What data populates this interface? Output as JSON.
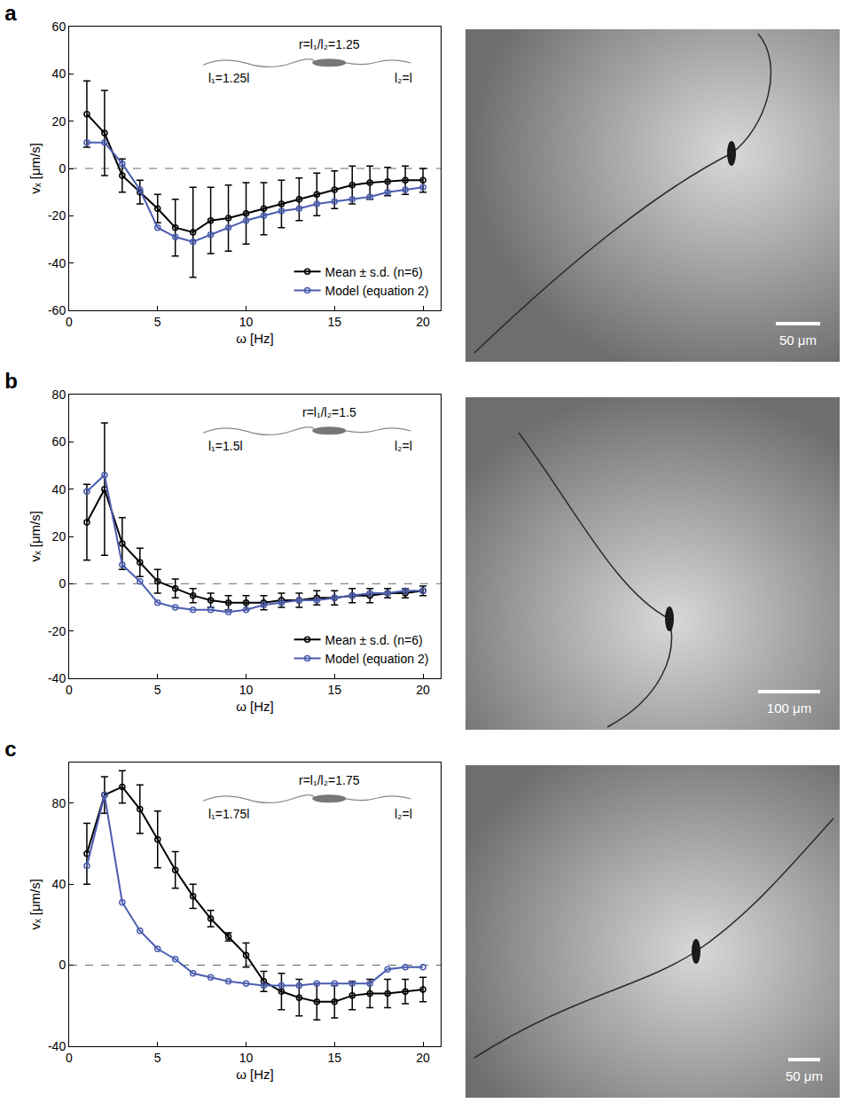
{
  "chart_data": [
    {
      "type": "line",
      "title": "a",
      "x_label": "ω [Hz]",
      "y_label": "vₓ [μm/s]",
      "x": [
        1,
        2,
        3,
        4,
        5,
        6,
        7,
        8,
        9,
        10,
        11,
        12,
        13,
        14,
        15,
        16,
        17,
        18,
        19,
        20
      ],
      "xlim": [
        0,
        21
      ],
      "xticks": [
        0,
        5,
        10,
        15,
        20
      ],
      "ylim": [
        -60,
        60
      ],
      "yticks": [
        -60,
        -40,
        -20,
        0,
        20,
        40,
        60
      ],
      "baseline": 0,
      "legend": "lower right",
      "grid": false,
      "annotations": [
        "r=l₁/l₂=1.25",
        "l₁=1.25l",
        "l₂=l"
      ],
      "series": [
        {
          "name": "Mean ± s.d. (n=6)",
          "color": "#000000",
          "marker": "circle-open",
          "line_style": "solid",
          "values": [
            23,
            15,
            -3,
            -10,
            -17,
            -25,
            -27,
            -22,
            -21,
            -19,
            -17,
            -15,
            -13,
            -11,
            -9,
            -7,
            -6,
            -5.5,
            -5,
            -5
          ],
          "error": [
            14,
            18,
            7,
            5,
            6,
            12,
            19,
            14,
            14,
            13,
            11,
            10,
            9,
            9,
            8,
            8,
            7,
            6,
            6,
            5
          ]
        },
        {
          "name": "Model (equation 2)",
          "color": "#4a5cb0",
          "marker": "circle-open",
          "line_style": "solid",
          "values": [
            11,
            11,
            2,
            -9,
            -25,
            -29,
            -31,
            -28,
            -25,
            -22,
            -20,
            -18,
            -17,
            -15,
            -14,
            -13,
            -12,
            -10,
            -9,
            -8
          ]
        }
      ]
    },
    {
      "type": "line",
      "title": "b",
      "x_label": "ω [Hz]",
      "y_label": "vₓ [μm/s]",
      "x": [
        1,
        2,
        3,
        4,
        5,
        6,
        7,
        8,
        9,
        10,
        11,
        12,
        13,
        14,
        15,
        16,
        17,
        18,
        19,
        20
      ],
      "xlim": [
        0,
        21
      ],
      "xticks": [
        0,
        5,
        10,
        15,
        20
      ],
      "ylim": [
        -40,
        80
      ],
      "yticks": [
        -40,
        -20,
        0,
        20,
        40,
        60,
        80
      ],
      "baseline": 0,
      "legend": "lower right",
      "grid": false,
      "annotations": [
        "r=l₁/l₂=1.5",
        "l₁=1.5l",
        "l₂=l"
      ],
      "series": [
        {
          "name": "Mean ± s.d. (n=6)",
          "color": "#000000",
          "marker": "circle-open",
          "line_style": "solid",
          "values": [
            26,
            40,
            17,
            9,
            1,
            -2,
            -5,
            -7,
            -8,
            -8,
            -8,
            -7,
            -7,
            -6,
            -6,
            -5,
            -5,
            -4,
            -4,
            -3
          ],
          "error": [
            16,
            28,
            11,
            6,
            5,
            4,
            3,
            3,
            3,
            3,
            3,
            3,
            3,
            3,
            3,
            3,
            3,
            2,
            2,
            2
          ]
        },
        {
          "name": "Model (equation 2)",
          "color": "#4a5cb0",
          "marker": "circle-open",
          "line_style": "solid",
          "values": [
            39,
            46,
            8,
            1,
            -8,
            -10,
            -11,
            -11,
            -12,
            -11,
            -9,
            -8,
            -7,
            -7,
            -6,
            -5,
            -4,
            -4,
            -3,
            -3
          ]
        }
      ]
    },
    {
      "type": "line",
      "title": "c",
      "x_label": "ω [Hz]",
      "y_label": "vₓ [μm/s]",
      "x": [
        1,
        2,
        3,
        4,
        5,
        6,
        7,
        8,
        9,
        10,
        11,
        12,
        13,
        14,
        15,
        16,
        17,
        18,
        19,
        20
      ],
      "xlim": [
        0,
        21
      ],
      "xticks": [
        0,
        5,
        10,
        15,
        20
      ],
      "ylim": [
        -40,
        100
      ],
      "yticks": [
        -40,
        0,
        40,
        80
      ],
      "baseline": 0,
      "grid": false,
      "annotations": [
        "r=l₁/l₂=1.75",
        "l₁=1.75l",
        "l₂=l"
      ],
      "series": [
        {
          "name": "Mean ± s.d. (n=6)",
          "color": "#000000",
          "marker": "circle-open",
          "line_style": "solid",
          "values": [
            55,
            84,
            88,
            77,
            62,
            47,
            34,
            23,
            14,
            5,
            -8,
            -13,
            -16,
            -18,
            -18,
            -15,
            -14,
            -14,
            -13,
            -12
          ],
          "error": [
            15,
            9,
            8,
            12,
            14,
            9,
            6,
            4,
            2,
            6,
            5,
            9,
            9,
            9,
            8,
            7,
            7,
            7,
            6,
            6
          ]
        },
        {
          "name": "Model (equation 2)",
          "color": "#4a5cb0",
          "marker": "circle-open",
          "line_style": "solid",
          "values": [
            49,
            84,
            31,
            17,
            8,
            3,
            -4,
            -6,
            -8,
            -9,
            -10,
            -10,
            -10,
            -9,
            -9,
            -9,
            -9,
            -2,
            -1,
            -1
          ]
        }
      ]
    }
  ],
  "images": [
    {
      "scale_bar": "50 μm"
    },
    {
      "scale_bar": "100 μm"
    },
    {
      "scale_bar": "50 μm"
    }
  ]
}
